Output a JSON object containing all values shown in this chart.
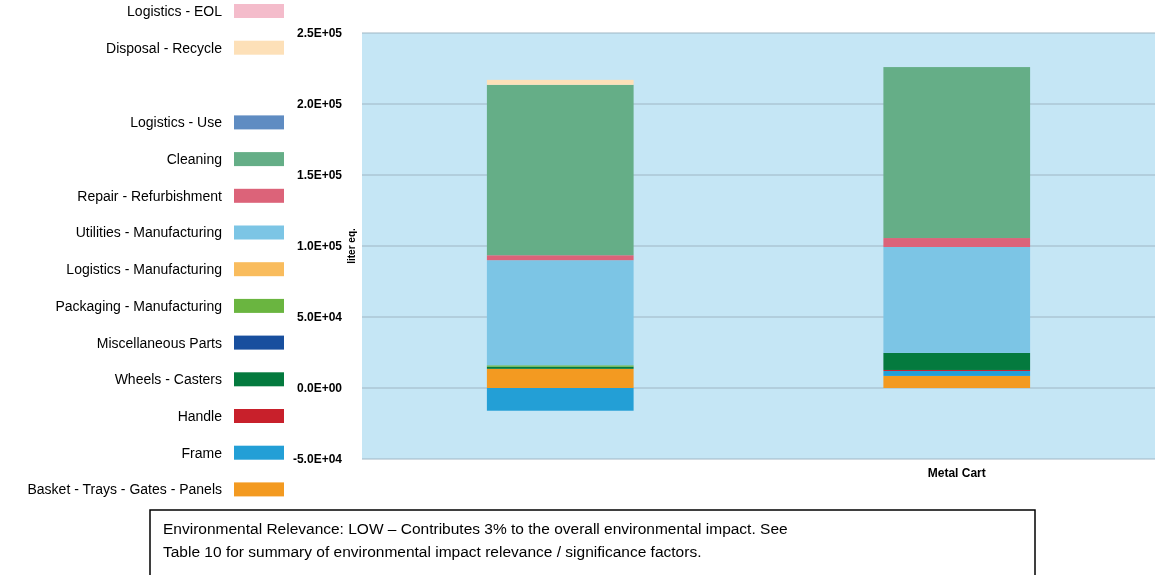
{
  "chart_data": {
    "type": "bar",
    "stacked": true,
    "categories": [
      null,
      "Metal Cart"
    ],
    "ylabel": "liter eq.",
    "ylim": [
      -50000,
      250000
    ],
    "yticks": [
      {
        "value": -50000,
        "label": "-5.0E+04"
      },
      {
        "value": 0,
        "label": "0.0E+00"
      },
      {
        "value": 50000,
        "label": "5.0E+04"
      },
      {
        "value": 100000,
        "label": "1.0E+05"
      },
      {
        "value": 150000,
        "label": "1.5E+05"
      },
      {
        "value": 200000,
        "label": "2.0E+05"
      },
      {
        "value": 250000,
        "label": "2.5E+05"
      }
    ],
    "grid": "y",
    "legend": "left",
    "series": [
      {
        "name": "Basket - Trays - Gates - Panels",
        "color": "#f39a21",
        "values": [
          13500,
          8500
        ]
      },
      {
        "name": "Frame",
        "color": "#239fd6",
        "values": [
          -16000,
          3500
        ]
      },
      {
        "name": "Handle",
        "color": "#c8202b",
        "values": [
          0,
          700
        ]
      },
      {
        "name": "Wheels - Casters",
        "color": "#047a3e",
        "values": [
          1500,
          12000
        ]
      },
      {
        "name": "Miscellaneous Parts",
        "color": "#184f9e",
        "values": [
          0,
          0
        ]
      },
      {
        "name": "Packaging - Manufacturing",
        "color": "#6ab540",
        "values": [
          1000,
          0
        ]
      },
      {
        "name": "Logistics - Manufacturing",
        "color": "#f9bc5d",
        "values": [
          0,
          0
        ]
      },
      {
        "name": "Utilities - Manufacturing",
        "color": "#7cc5e5",
        "values": [
          74000,
          74600
        ]
      },
      {
        "name": "Repair - Refurbishment",
        "color": "#dc6379",
        "values": [
          3500,
          6300
        ]
      },
      {
        "name": "Cleaning",
        "color": "#65ae87",
        "values": [
          120000,
          120400
        ]
      },
      {
        "name": "Logistics - Use",
        "color": "#5f8cc2",
        "values": [
          0,
          0
        ]
      },
      {
        "name": "Disposal - Recycle",
        "color": "#fde0b8",
        "values": [
          3500,
          0
        ]
      },
      {
        "name": "Logistics - EOL",
        "color": "#f4bccb",
        "values": [
          0,
          0
        ]
      }
    ],
    "annotations": [
      "Environmental Relevance: LOW – Contributes 3% to the overall environmental impact.  See",
      "Table 10 for summary of environmental impact relevance / significance factors."
    ]
  }
}
